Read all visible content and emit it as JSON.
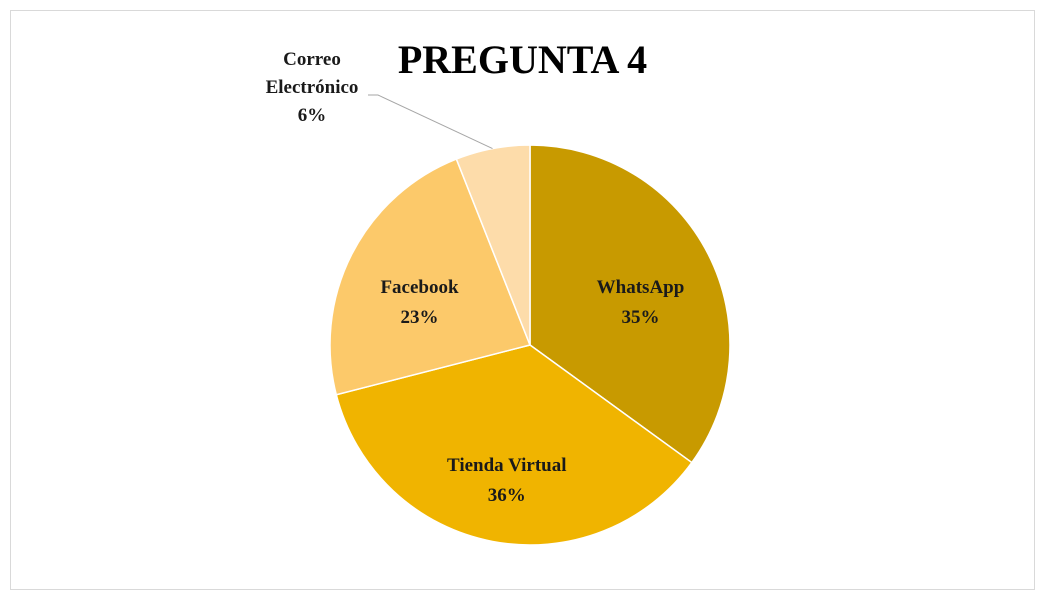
{
  "chart_data": {
    "type": "pie",
    "title": "PREGUNTA 4",
    "categories": [
      "WhatsApp",
      "Tienda Virtual",
      "Facebook",
      "Correo Electrónico"
    ],
    "values": [
      35,
      36,
      23,
      6
    ],
    "value_labels": [
      "35%",
      "36%",
      "23%",
      "6%"
    ],
    "colors": [
      "#c89a00",
      "#f0b400",
      "#fcc96a",
      "#fddcaa"
    ]
  }
}
